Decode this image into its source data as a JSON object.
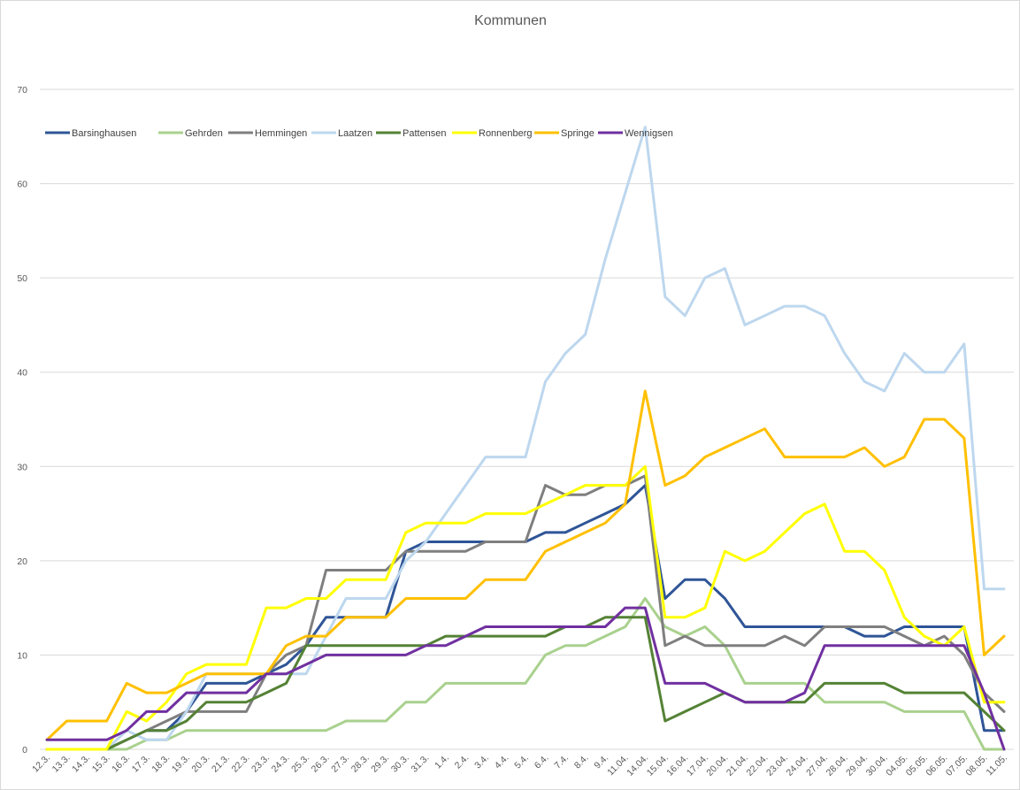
{
  "chart_data": {
    "type": "line",
    "title": "Kommunen",
    "xlabel": "",
    "ylabel": "",
    "ylim": [
      0,
      70
    ],
    "y_ticks": [
      "0",
      "10",
      "20",
      "30",
      "40",
      "50",
      "60",
      "70"
    ],
    "grid": "horizontal",
    "legend_position": "top-left",
    "categories": [
      "12.3.",
      "13.3.",
      "14.3.",
      "15.3.",
      "16.3.",
      "17.3.",
      "18.3.",
      "19.3.",
      "20.3.",
      "21.3.",
      "22.3.",
      "23.3.",
      "24.3.",
      "25.3.",
      "26.3.",
      "27.3.",
      "28.3.",
      "29.3.",
      "30.3.",
      "31.3.",
      "1.4.",
      "2.4.",
      "3.4.",
      "4.4.",
      "5.4.",
      "6.4.",
      "7.4.",
      "8.4.",
      "9.4.",
      "11.04.",
      "14.04.",
      "15.04.",
      "16.04.",
      "17.04.",
      "20.04.",
      "21.04.",
      "22.04.",
      "23.04.",
      "24.04.",
      "27.04.",
      "28.04.",
      "29.04.",
      "30.04.",
      "04.05.",
      "05.05.",
      "06.05.",
      "07.05.",
      "08.05.",
      "11.05."
    ],
    "series": [
      {
        "name": "Barsinghausen",
        "color": "#2F5597",
        "values": [
          0,
          0,
          0,
          0,
          1,
          2,
          2,
          4,
          7,
          7,
          7,
          8,
          9,
          11,
          14,
          14,
          14,
          14,
          21,
          22,
          22,
          22,
          22,
          22,
          22,
          23,
          23,
          24,
          25,
          26,
          28,
          16,
          18,
          18,
          16,
          13,
          13,
          13,
          13,
          13,
          13,
          12,
          12,
          13,
          13,
          13,
          13,
          2,
          2
        ]
      },
      {
        "name": "Gehrden",
        "color": "#A9D18E",
        "values": [
          0,
          0,
          0,
          0,
          0,
          1,
          1,
          2,
          2,
          2,
          2,
          2,
          2,
          2,
          2,
          3,
          3,
          3,
          5,
          5,
          7,
          7,
          7,
          7,
          7,
          10,
          11,
          11,
          12,
          13,
          16,
          13,
          12,
          13,
          11,
          7,
          7,
          7,
          7,
          5,
          5,
          5,
          5,
          4,
          4,
          4,
          4,
          0,
          0
        ]
      },
      {
        "name": "Hemmingen",
        "color": "#7F7F7F",
        "values": [
          0,
          0,
          0,
          0,
          1,
          2,
          3,
          4,
          4,
          4,
          4,
          8,
          10,
          11,
          19,
          19,
          19,
          19,
          21,
          21,
          21,
          21,
          22,
          22,
          22,
          28,
          27,
          27,
          28,
          28,
          29,
          11,
          12,
          11,
          11,
          11,
          11,
          12,
          11,
          13,
          13,
          13,
          13,
          12,
          11,
          12,
          10,
          6,
          4
        ]
      },
      {
        "name": "Laatzen",
        "color": "#BDD7EE",
        "values": [
          0,
          0,
          0,
          0,
          2,
          1,
          1,
          4,
          8,
          8,
          8,
          8,
          8,
          8,
          12,
          16,
          16,
          16,
          20,
          22,
          25,
          28,
          31,
          31,
          31,
          39,
          42,
          44,
          52,
          59,
          66,
          48,
          46,
          50,
          51,
          45,
          46,
          47,
          47,
          46,
          42,
          39,
          38,
          42,
          40,
          40,
          43,
          17,
          17
        ]
      },
      {
        "name": "Pattensen",
        "color": "#548235",
        "values": [
          0,
          0,
          0,
          0,
          1,
          2,
          2,
          3,
          5,
          5,
          5,
          6,
          7,
          11,
          11,
          11,
          11,
          11,
          11,
          11,
          12,
          12,
          12,
          12,
          12,
          12,
          13,
          13,
          14,
          14,
          14,
          3,
          4,
          5,
          6,
          5,
          5,
          5,
          5,
          7,
          7,
          7,
          7,
          6,
          6,
          6,
          6,
          4,
          2
        ]
      },
      {
        "name": "Ronnenberg",
        "color": "#FFFF00",
        "values": [
          0,
          0,
          0,
          0,
          4,
          3,
          5,
          8,
          9,
          9,
          9,
          15,
          15,
          16,
          16,
          18,
          18,
          18,
          23,
          24,
          24,
          24,
          25,
          25,
          25,
          26,
          27,
          28,
          28,
          28,
          30,
          14,
          14,
          15,
          21,
          20,
          21,
          23,
          25,
          26,
          21,
          21,
          19,
          14,
          12,
          11,
          13,
          5,
          5
        ]
      },
      {
        "name": "Springe",
        "color": "#FFC000",
        "values": [
          1,
          3,
          3,
          3,
          7,
          6,
          6,
          7,
          8,
          8,
          8,
          8,
          11,
          12,
          12,
          14,
          14,
          14,
          16,
          16,
          16,
          16,
          18,
          18,
          18,
          21,
          22,
          23,
          24,
          26,
          38,
          28,
          29,
          31,
          32,
          33,
          34,
          31,
          31,
          31,
          31,
          32,
          30,
          31,
          35,
          35,
          33,
          10,
          12
        ]
      },
      {
        "name": "Wennigsen",
        "color": "#7030A0",
        "values": [
          1,
          1,
          1,
          1,
          2,
          4,
          4,
          6,
          6,
          6,
          6,
          8,
          8,
          9,
          10,
          10,
          10,
          10,
          10,
          11,
          11,
          12,
          13,
          13,
          13,
          13,
          13,
          13,
          13,
          15,
          15,
          7,
          7,
          7,
          6,
          5,
          5,
          5,
          6,
          11,
          11,
          11,
          11,
          11,
          11,
          11,
          11,
          6,
          0
        ]
      }
    ]
  }
}
